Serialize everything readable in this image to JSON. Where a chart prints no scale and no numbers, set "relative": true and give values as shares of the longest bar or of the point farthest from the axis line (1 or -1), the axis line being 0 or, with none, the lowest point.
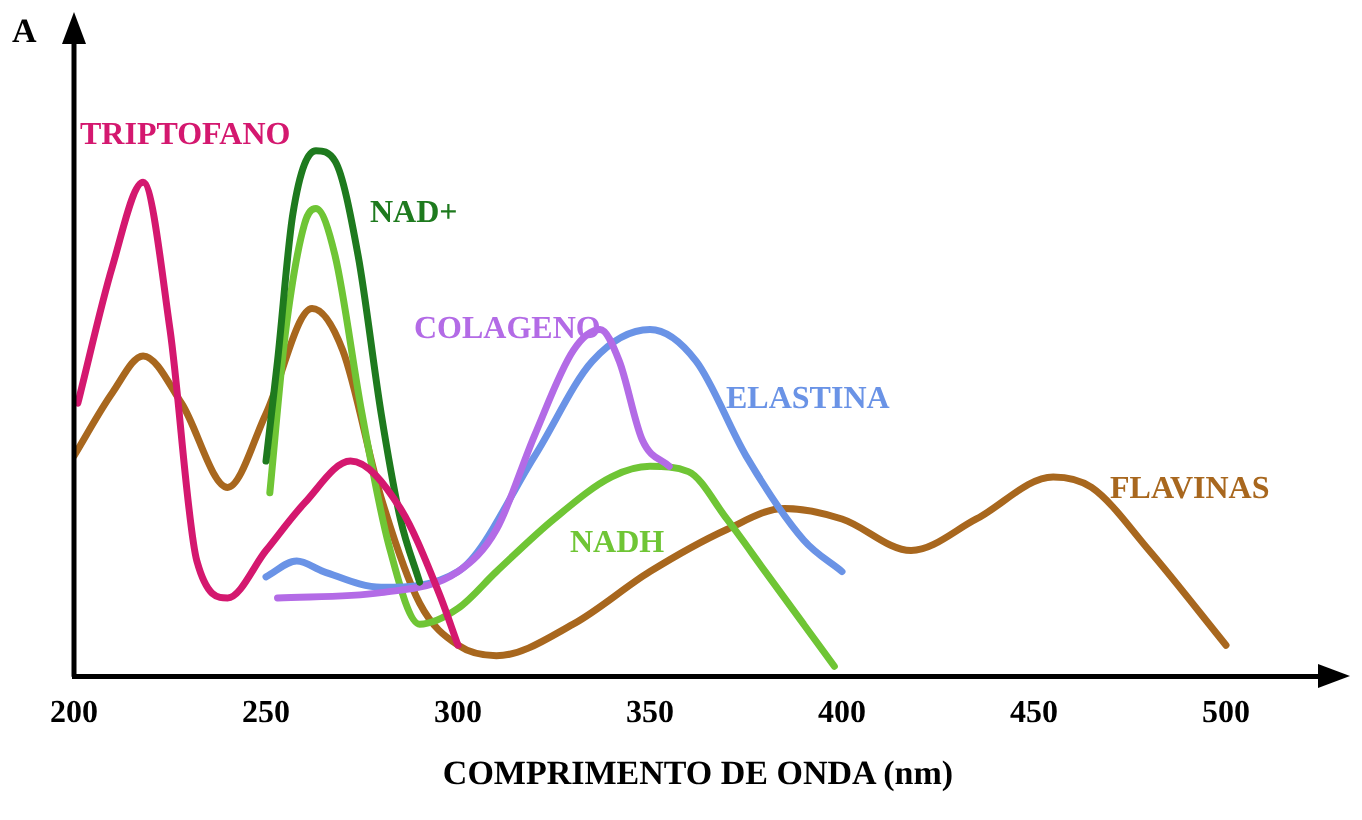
{
  "chart_data": {
    "type": "line",
    "relative": true,
    "ylabel": "A",
    "xlabel": "COMPRIMENTO DE ONDA (nm)",
    "xlim": [
      200,
      525
    ],
    "xticks": [
      200,
      250,
      300,
      350,
      400,
      450,
      500
    ],
    "grid": false,
    "legend": false,
    "tick_labels": "x",
    "marker": "none",
    "line_style": "solid",
    "series": [
      {
        "name": "TRIPTOFANO",
        "color": "#d4186f",
        "x": [
          201,
          210,
          218,
          225,
          232,
          240,
          250,
          260,
          272,
          285,
          295,
          300
        ],
        "values": [
          0.52,
          0.78,
          0.94,
          0.66,
          0.22,
          0.15,
          0.24,
          0.33,
          0.41,
          0.32,
          0.16,
          0.06
        ]
      },
      {
        "name": "NAD+",
        "color": "#1e7a1e",
        "x": [
          250,
          253,
          257,
          263,
          268,
          274,
          280,
          285,
          290
        ],
        "values": [
          0.41,
          0.6,
          0.88,
          1.0,
          0.98,
          0.8,
          0.5,
          0.3,
          0.18
        ]
      },
      {
        "name": "COLAGENO",
        "color": "#b36be6",
        "x": [
          253,
          280,
          300,
          310,
          320,
          330,
          337,
          342,
          348,
          355
        ],
        "values": [
          0.15,
          0.16,
          0.2,
          0.28,
          0.46,
          0.62,
          0.66,
          0.6,
          0.45,
          0.4
        ]
      },
      {
        "name": "ELASTINA",
        "color": "#6a93e6",
        "x": [
          250,
          258,
          265,
          280,
          300,
          320,
          335,
          350,
          362,
          375,
          390,
          400
        ],
        "values": [
          0.19,
          0.22,
          0.2,
          0.17,
          0.2,
          0.42,
          0.6,
          0.66,
          0.6,
          0.42,
          0.26,
          0.2
        ]
      },
      {
        "name": "NADH",
        "color": "#6fc535",
        "x": [
          251,
          255,
          260,
          263,
          268,
          275,
          282,
          290,
          300,
          310,
          325,
          340,
          350,
          360,
          370,
          380,
          390,
          398
        ],
        "values": [
          0.35,
          0.65,
          0.86,
          0.89,
          0.8,
          0.5,
          0.25,
          0.1,
          0.13,
          0.2,
          0.3,
          0.38,
          0.4,
          0.39,
          0.3,
          0.2,
          0.1,
          0.02
        ]
      },
      {
        "name": "FLAVINAS",
        "color": "#a8671e",
        "x": [
          200,
          210,
          218,
          228,
          240,
          250,
          262,
          270,
          280,
          290,
          300,
          310,
          330,
          350,
          370,
          385,
          400,
          418,
          435,
          455,
          465,
          480,
          500
        ],
        "values": [
          0.42,
          0.54,
          0.61,
          0.52,
          0.36,
          0.5,
          0.7,
          0.62,
          0.34,
          0.14,
          0.06,
          0.04,
          0.1,
          0.2,
          0.28,
          0.32,
          0.3,
          0.24,
          0.3,
          0.38,
          0.36,
          0.24,
          0.06
        ]
      }
    ]
  }
}
